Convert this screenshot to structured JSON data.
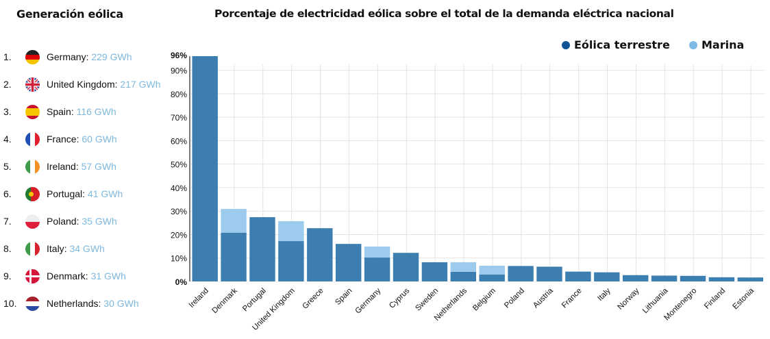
{
  "sidebar": {
    "title": "Generación eólica",
    "items": [
      {
        "rank": "1.",
        "country": "Germany",
        "value": "229 GWh",
        "flag": "germany-flag-icon"
      },
      {
        "rank": "2.",
        "country": "United Kingdom",
        "value": "217 GWh",
        "flag": "uk-flag-icon"
      },
      {
        "rank": "3.",
        "country": "Spain",
        "value": "116 GWh",
        "flag": "spain-flag-icon"
      },
      {
        "rank": "4.",
        "country": "France",
        "value": "60 GWh",
        "flag": "france-flag-icon"
      },
      {
        "rank": "5.",
        "country": "Ireland",
        "value": "57 GWh",
        "flag": "ireland-flag-icon"
      },
      {
        "rank": "6.",
        "country": "Portugal",
        "value": "41 GWh",
        "flag": "portugal-flag-icon"
      },
      {
        "rank": "7.",
        "country": "Poland",
        "value": "35 GWh",
        "flag": "poland-flag-icon"
      },
      {
        "rank": "8.",
        "country": "Italy",
        "value": "34 GWh",
        "flag": "italy-flag-icon"
      },
      {
        "rank": "9.",
        "country": "Denmark",
        "value": "31 GWh",
        "flag": "denmark-flag-icon"
      },
      {
        "rank": "10.",
        "country": "Netherlands",
        "value": "30 GWh",
        "flag": "netherlands-flag-icon"
      }
    ]
  },
  "colors": {
    "onshore": "#3d7eb0",
    "offshore": "#9dcbee",
    "legend_onshore": "#0f5595",
    "legend_offshore": "#7fbbe5",
    "value_text": "#7fb8dd",
    "grid": "#e3e3e3"
  },
  "chart_data": {
    "type": "bar",
    "stacked": true,
    "title": "Porcentaje de electricidad eólica sobre el total de la demanda eléctrica nacional",
    "xlabel": "",
    "ylabel": "",
    "ylim": [
      0,
      96
    ],
    "yticks": [
      "0%",
      "10%",
      "20%",
      "30%",
      "40%",
      "50%",
      "60%",
      "70%",
      "80%",
      "90%",
      "96%"
    ],
    "ytick_values": [
      0,
      10,
      20,
      30,
      40,
      50,
      60,
      70,
      80,
      90,
      96
    ],
    "grid": true,
    "legend_position": "top-right",
    "categories": [
      "Ireland",
      "Denmark",
      "Portugal",
      "United Kingdom",
      "Greece",
      "Spain",
      "Germany",
      "Cyprus",
      "Sweden",
      "Netherlands",
      "Belgium",
      "Poland",
      "Austria",
      "France",
      "Italy",
      "Norway",
      "Lithuania",
      "Montenegro",
      "Finland",
      "Estonia"
    ],
    "series": [
      {
        "name": "Eólica terrestre",
        "values": [
          96,
          20.8,
          27.4,
          17.2,
          22.7,
          16.0,
          10.2,
          12.2,
          8.2,
          4.1,
          3.0,
          6.6,
          6.3,
          4.2,
          3.9,
          2.7,
          2.5,
          2.4,
          1.8,
          1.7
        ]
      },
      {
        "name": "Marina",
        "values": [
          0,
          10.1,
          0,
          8.5,
          0,
          0,
          4.7,
          0,
          0,
          4.1,
          3.7,
          0,
          0,
          0,
          0,
          0,
          0,
          0,
          0,
          0
        ]
      }
    ]
  }
}
